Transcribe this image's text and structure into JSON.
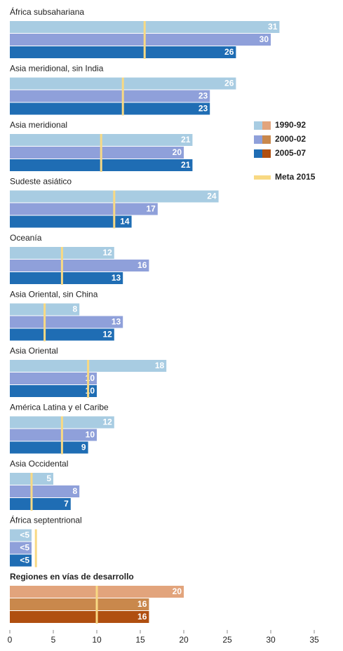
{
  "chart_data": {
    "type": "bar",
    "orientation": "horizontal",
    "categories": [
      "África subsahariana",
      "Asia meridional, sin India",
      "Asia meridional",
      "Sudeste asiático",
      "Oceanía",
      "Asia Oriental, sin China",
      "Asia Oriental",
      "América Latina y el Caribe",
      "Asia Occidental",
      "África septentrional",
      "Regiones en vías de desarrollo"
    ],
    "highlight_last": true,
    "series": [
      {
        "name": "1990-92",
        "color": "#a8cce2",
        "highlight_color": "#e2a47c",
        "values": [
          31,
          26,
          21,
          24,
          12,
          8,
          18,
          12,
          5,
          2.5,
          20
        ],
        "value_labels": [
          "31",
          "26",
          "21",
          "24",
          "12",
          "8",
          "18",
          "12",
          "5",
          "<5",
          "20"
        ]
      },
      {
        "name": "2000-02",
        "color": "#8fa0da",
        "highlight_color": "#c9884c",
        "values": [
          30,
          23,
          20,
          17,
          16,
          13,
          10,
          10,
          8,
          2.5,
          16
        ],
        "value_labels": [
          "30",
          "23",
          "20",
          "17",
          "16",
          "13",
          "10",
          "10",
          "8",
          "<5",
          "16"
        ]
      },
      {
        "name": "2005-07",
        "color": "#1f6db4",
        "highlight_color": "#b04f10",
        "values": [
          26,
          23,
          21,
          14,
          13,
          12,
          10,
          9,
          7,
          2.5,
          16
        ],
        "value_labels": [
          "26",
          "23",
          "21",
          "14",
          "13",
          "12",
          "10",
          "9",
          "7",
          "<5",
          "16"
        ]
      }
    ],
    "target": {
      "name": "Meta 2015",
      "color": "#f8d983",
      "values": [
        15.5,
        13,
        10.5,
        12,
        6,
        4,
        9,
        6,
        2.5,
        3,
        10
      ]
    },
    "xlim": [
      0,
      35
    ],
    "xticks": [
      0,
      5,
      10,
      15,
      20,
      25,
      30,
      35
    ]
  }
}
